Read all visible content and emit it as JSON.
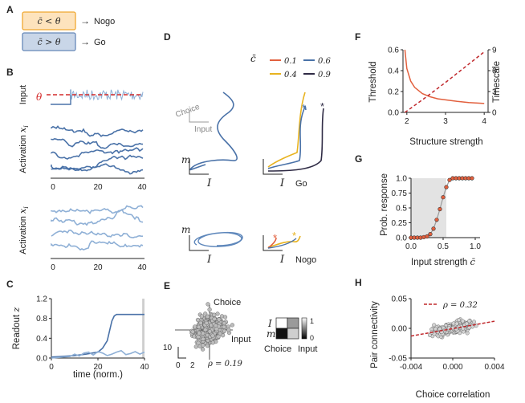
{
  "panels": {
    "A": {
      "label": "A",
      "rule_nogo": "c̄ < θ",
      "rule_go": "c̄ > θ",
      "arrow": "→",
      "nogo": "Nogo",
      "go": "Go",
      "colors": {
        "nogo_fill": "#fde3bd",
        "nogo_border": "#f0a830",
        "go_fill": "#c9d6e8",
        "go_border": "#6688b8"
      }
    },
    "B": {
      "label": "B",
      "theta": "θ",
      "input_label": "Input",
      "activation_label": "Activation",
      "activation_sym": "x",
      "activation_sub": "i",
      "xticks": [
        "0",
        "20",
        "40"
      ]
    },
    "C": {
      "label": "C",
      "ylabel_text": "Readout",
      "ylabel_sym": "z",
      "xlabel": "time (norm.)",
      "yticks": [
        "0.0",
        "0.4",
        "0.8",
        "1.2"
      ],
      "xticks": [
        "0",
        "20",
        "40"
      ]
    },
    "D": {
      "label": "D",
      "legend_sym": "c̄",
      "legend": [
        "0.1",
        "0.6",
        "0.4",
        "0.9"
      ],
      "choice": "Choice",
      "input": "Input",
      "m": "m",
      "I": "I",
      "go": "Go",
      "nogo": "Nogo"
    },
    "E": {
      "label": "E",
      "choice": "Choice",
      "input": "Input",
      "scale_y": "10",
      "scale_x0": "0",
      "scale_x": "2",
      "rho": "ρ = 0.19",
      "mat_rows": [
        "I",
        "m"
      ],
      "mat_cols": [
        "Choice",
        "Input"
      ],
      "cbar": [
        "1",
        "0"
      ]
    },
    "F": {
      "label": "F",
      "ylabel_left": "Threshold",
      "ylabel_right": "Timescale",
      "xlabel": "Structure strength",
      "yticks_left": [
        "0.0",
        "0.2",
        "0.4",
        "0.6"
      ],
      "yticks_right": [
        "0",
        "3",
        "6",
        "9"
      ],
      "xticks": [
        "2",
        "3",
        "4"
      ]
    },
    "G": {
      "label": "G",
      "ylabel": "Prob. response",
      "xlabel": "Input strength",
      "xlabel_sym": "c̄",
      "yticks": [
        "0.0",
        "0.25",
        "0.5",
        "0.75",
        "1.0"
      ],
      "xticks": [
        "0.0",
        "0.5",
        "1.0"
      ]
    },
    "H": {
      "label": "H",
      "ylabel": "Pair connectivity",
      "xlabel": "Choice correlation",
      "yticks": [
        "0.05",
        "0.00",
        "-0.05"
      ],
      "xticks": [
        "-0.004",
        "0.000",
        "0.004"
      ],
      "legend": "ρ = 0.32"
    }
  },
  "chart_data": [
    {
      "type": "line",
      "panel": "F",
      "xlabel": "Structure strength",
      "ylabel": "Threshold",
      "y2label": "Timescale",
      "xlim": [
        1.9,
        4.1
      ],
      "ylim": [
        0,
        0.6
      ],
      "y2lim": [
        0,
        9
      ],
      "series": [
        {
          "axis": "left",
          "style": "solid",
          "color": "#e2603e",
          "x": [
            1.95,
            2.0,
            2.1,
            2.2,
            2.4,
            2.6,
            2.8,
            3.0,
            3.3,
            3.6,
            4.0
          ],
          "y": [
            0.6,
            0.42,
            0.3,
            0.24,
            0.18,
            0.15,
            0.13,
            0.12,
            0.105,
            0.095,
            0.085
          ]
        },
        {
          "axis": "right",
          "style": "dashed",
          "color": "#c0282c",
          "x": [
            1.95,
            2.0,
            2.5,
            3.0,
            3.5,
            4.0
          ],
          "y": [
            0,
            0.2,
            2.2,
            4.3,
            6.5,
            8.7
          ]
        }
      ]
    },
    {
      "type": "scatter",
      "panel": "G",
      "xlabel": "Input strength c̄",
      "ylabel": "Prob. response",
      "xlim": [
        0,
        1
      ],
      "ylim": [
        0,
        1
      ],
      "shaded_x": [
        0,
        0.55
      ],
      "x": [
        0.0,
        0.05,
        0.1,
        0.15,
        0.2,
        0.25,
        0.3,
        0.35,
        0.4,
        0.45,
        0.5,
        0.55,
        0.6,
        0.65,
        0.7,
        0.75,
        0.8,
        0.85,
        0.9,
        0.95
      ],
      "y": [
        0.0,
        0.0,
        0.0,
        0.0,
        0.01,
        0.02,
        0.06,
        0.15,
        0.3,
        0.48,
        0.68,
        0.85,
        0.97,
        1.0,
        1.0,
        1.0,
        1.0,
        1.0,
        1.0,
        1.0
      ]
    },
    {
      "type": "line",
      "panel": "C",
      "xlabel": "time (norm.)",
      "ylabel": "Readout z",
      "xlim": [
        0,
        40
      ],
      "ylim": [
        0,
        1.2
      ],
      "shaded_x": [
        39,
        40
      ],
      "series": [
        {
          "color": "#4a72a8",
          "x": [
            0,
            10,
            15,
            20,
            22,
            24,
            25,
            26,
            27,
            28,
            30,
            35,
            40
          ],
          "y": [
            0.02,
            0.05,
            0.08,
            0.12,
            0.2,
            0.35,
            0.55,
            0.75,
            0.85,
            0.88,
            0.88,
            0.88,
            0.88
          ]
        },
        {
          "color": "#8fb0d6",
          "x": [
            0,
            8,
            10,
            12,
            14,
            16,
            18,
            20,
            22,
            24,
            26,
            28,
            30,
            32,
            34,
            36,
            38,
            40
          ],
          "y": [
            0.0,
            0.03,
            0.08,
            0.04,
            0.1,
            0.12,
            0.06,
            0.13,
            0.1,
            0.05,
            0.08,
            0.12,
            0.15,
            0.07,
            0.09,
            0.13,
            0.08,
            0.12
          ]
        }
      ]
    },
    {
      "type": "scatter",
      "panel": "H",
      "xlabel": "Choice correlation",
      "ylabel": "Pair connectivity",
      "xlim": [
        -0.004,
        0.004
      ],
      "ylim": [
        -0.05,
        0.05
      ],
      "fit": {
        "rho": 0.32,
        "x": [
          -0.004,
          0.004
        ],
        "y": [
          -0.013,
          0.012
        ]
      }
    }
  ]
}
